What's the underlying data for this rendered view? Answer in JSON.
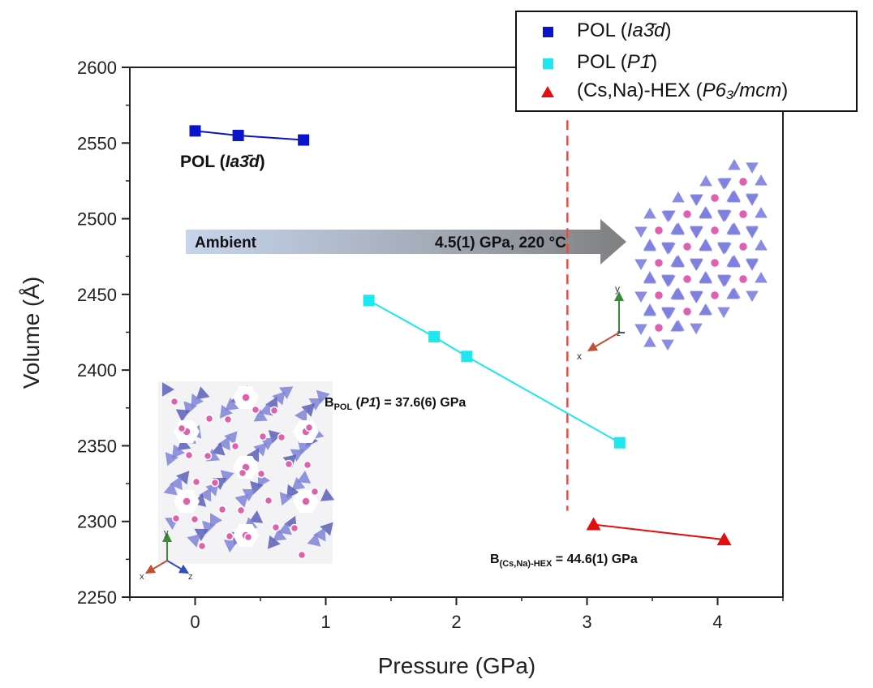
{
  "chart_data": {
    "type": "line",
    "xlabel": "Pressure (GPa)",
    "ylabel": "Volume (Å)",
    "xlim": [
      -0.5,
      4.5
    ],
    "ylim": [
      2250,
      2600
    ],
    "x_ticks": [
      "0",
      "1",
      "2",
      "3",
      "4"
    ],
    "y_ticks": [
      "2250",
      "2300",
      "2350",
      "2400",
      "2450",
      "2500",
      "2550",
      "2600"
    ],
    "grid": false,
    "legend_position": "top-right",
    "series": [
      {
        "name": "POL (Ia3̄d)",
        "color": "#0a14c8",
        "marker": "square",
        "x": [
          0.0,
          0.33,
          0.83
        ],
        "y": [
          2558,
          2555,
          2552
        ]
      },
      {
        "name": "POL (P1̄)",
        "color": "#1de7ef",
        "marker": "square",
        "x": [
          1.33,
          1.83,
          2.08,
          3.25
        ],
        "y": [
          2446,
          2422,
          2409,
          2352
        ]
      },
      {
        "name": "(Cs,Na)-HEX (P6₃/mcm)",
        "color": "#e30f0f",
        "marker": "triangle",
        "x": [
          3.05,
          4.05
        ],
        "y": [
          2298,
          2288
        ]
      }
    ],
    "vertical_line": {
      "x": 2.85,
      "y_range": [
        2307,
        2565
      ],
      "color": "#e0504a",
      "style": "dashed"
    },
    "annotations": {
      "pol_label_prefix": "POL (",
      "pol_label_phase": "Ia3̄d",
      "pol_label_suffix": ")",
      "bulk_pol_prefix": "B",
      "bulk_pol_sub": "POL",
      "bulk_pol_mid": " (",
      "bulk_pol_phase": "P1̄",
      "bulk_pol_value": ") = 37.6(6) GPa",
      "bulk_hex_prefix": "B",
      "bulk_hex_sub": "(Cs,Na)-HEX",
      "bulk_hex_value": " = 44.6(1) GPa",
      "arrow_start": "Ambient",
      "arrow_end": "4.5(1) GPa, 220 °C"
    },
    "legend": [
      {
        "prefix": "POL (",
        "phase": "Ia3̄d",
        "suffix": ")",
        "color": "#0a14c8",
        "marker": "square"
      },
      {
        "prefix": "POL (",
        "phase": "P1̄",
        "suffix": ")",
        "color": "#1de7ef",
        "marker": "square"
      },
      {
        "prefix": "(Cs,Na)-HEX (",
        "phase": "P6₃/mcm",
        "suffix": ")",
        "color": "#e30f0f",
        "marker": "triangle"
      }
    ],
    "structure_axes": {
      "hex": {
        "y": "y",
        "x": "x",
        "z": "z"
      },
      "pol": {
        "y": "y",
        "x": "x",
        "z": "z"
      }
    }
  }
}
